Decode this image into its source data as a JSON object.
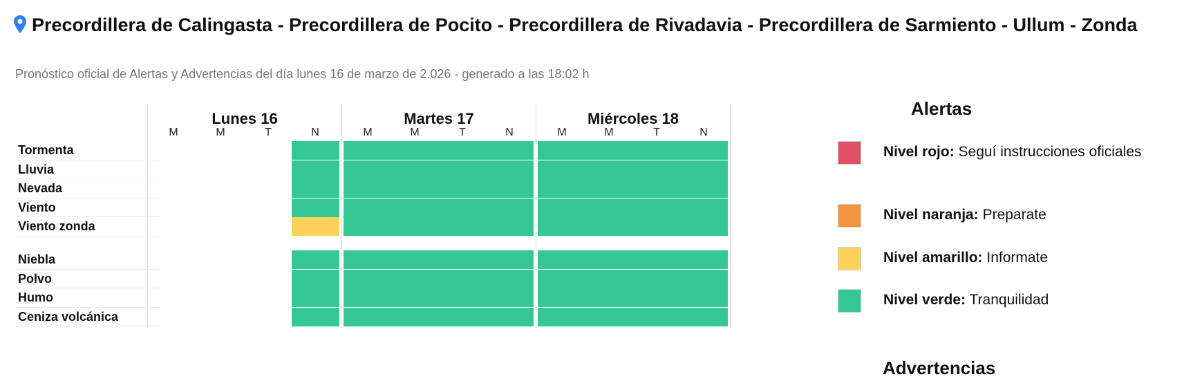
{
  "header": {
    "title": "Precordillera de Calingasta - Precordillera de Pocito - Precordillera de Rivadavia - Precordillera de Sarmiento - Ullum - Zonda",
    "subtitle": "Pronóstico oficial de Alertas y Advertencias del día lunes 16 de marzo de 2.026 - generado a las 18:02 h"
  },
  "colors": {
    "rojo": "#e05263",
    "naranja": "#f39440",
    "amarillo": "#fcd25a",
    "verde": "#35c896",
    "pin": "#2f80ed"
  },
  "icons": {
    "location": "map-pin-icon"
  },
  "days": [
    {
      "label": "Lunes 16",
      "slots": [
        "M",
        "M",
        "T",
        "N"
      ]
    },
    {
      "label": "Martes 17",
      "slots": [
        "M",
        "M",
        "T",
        "N"
      ]
    },
    {
      "label": "Miércoles 18",
      "slots": [
        "M",
        "M",
        "T",
        "N"
      ]
    }
  ],
  "rows": [
    {
      "label": "Tormenta",
      "day1_n": "verde",
      "day2": "verde",
      "day3": "verde"
    },
    {
      "label": "Lluvia",
      "day1_n": "verde",
      "day2": "verde",
      "day3": "verde"
    },
    {
      "label": "Nevada",
      "day1_n": "verde",
      "day2": "verde",
      "day3": "verde"
    },
    {
      "label": "Viento",
      "day1_n": "verde",
      "day2": "verde",
      "day3": "verde"
    },
    {
      "label": "Viento zonda",
      "day1_n": "amarillo",
      "day2": "verde",
      "day3": "verde"
    },
    {
      "label": "Niebla",
      "day1_n": "verde",
      "day2": "verde",
      "day3": "verde"
    },
    {
      "label": "Polvo",
      "day1_n": "verde",
      "day2": "verde",
      "day3": "verde"
    },
    {
      "label": "Humo",
      "day1_n": "verde",
      "day2": "verde",
      "day3": "verde"
    },
    {
      "label": "Ceniza volcánica",
      "day1_n": "verde",
      "day2": "verde",
      "day3": "verde"
    }
  ],
  "legend": {
    "alerts_title": "Alertas",
    "items": [
      {
        "level": "Nivel rojo:",
        "desc": " Seguí instrucciones oficiales"
      },
      {
        "level": "Nivel naranja:",
        "desc": " Preparate"
      },
      {
        "level": "Nivel amarillo:",
        "desc": " Informate"
      },
      {
        "level": "Nivel verde:",
        "desc": " Tranquilidad"
      }
    ],
    "warnings_title": "Advertencias"
  }
}
